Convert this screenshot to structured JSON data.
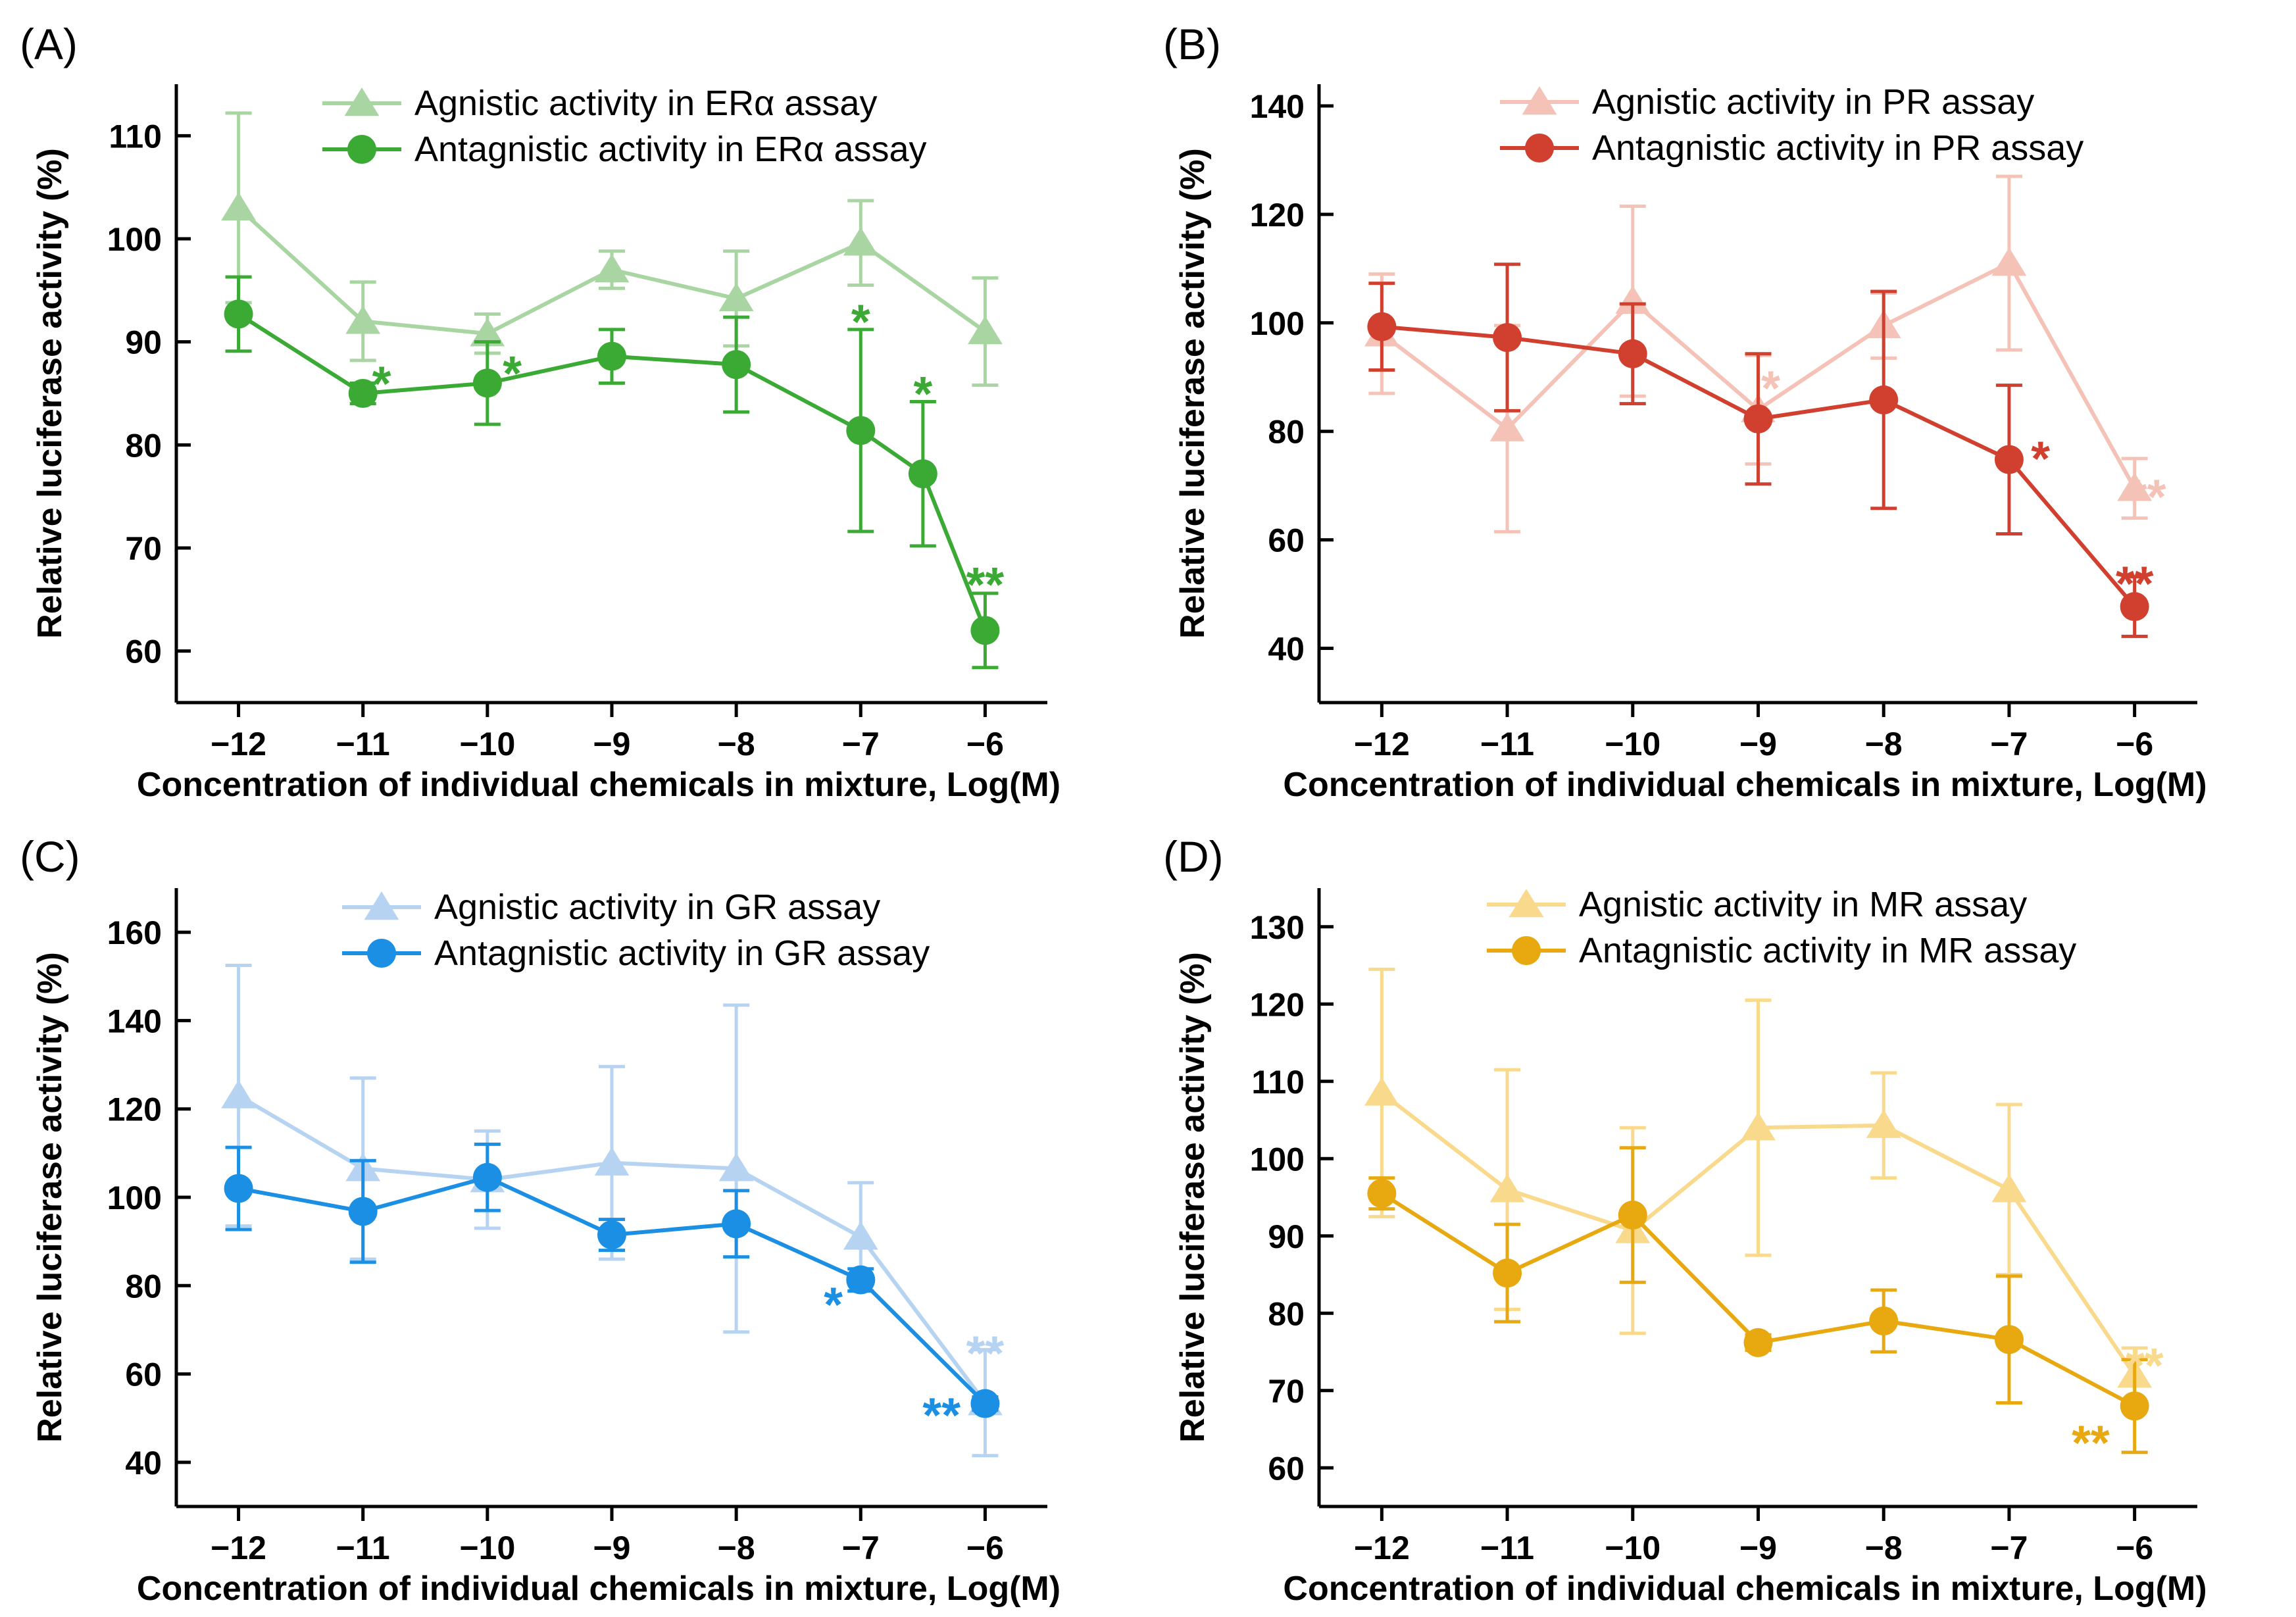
{
  "chart_data": [
    {
      "type": "line",
      "panel_label": "(A)",
      "xlabel": "Concentration of individual chemicals in mixture, Log(M)",
      "ylabel": "Relative luciferase activity (%)",
      "xlim": [
        -12.5,
        -5.5
      ],
      "ylim": [
        55,
        115
      ],
      "xticks": [
        -12,
        -11,
        -10,
        -9,
        -8,
        -7,
        -6
      ],
      "xtick_labels": [
        "−12",
        "−11",
        "−10",
        "−9",
        "−8",
        "−7",
        "−6"
      ],
      "yticks": [
        60,
        70,
        80,
        90,
        100,
        110
      ],
      "ytick_labels": [
        "60",
        "70",
        "80",
        "90",
        "100",
        "110"
      ],
      "legend_position": "top-right",
      "series": [
        {
          "name": "Agnistic activity in ERα assay",
          "marker": "triangle",
          "color": "#a8d5a2",
          "x": [
            -12,
            -11,
            -10,
            -9,
            -8,
            -7,
            -6
          ],
          "y": [
            103,
            92,
            90.8,
            97,
            94.2,
            99.6,
            91
          ],
          "err": [
            9.2,
            3.8,
            1.9,
            1.8,
            4.6,
            4.1,
            5.2
          ]
        },
        {
          "name": "Antagnistic activity in ERα assay",
          "marker": "circle",
          "color": "#3aaa35",
          "x": [
            -12,
            -11,
            -10,
            -9,
            -8,
            -7,
            -6.5,
            -6
          ],
          "y": [
            92.7,
            85,
            86,
            88.6,
            87.8,
            81.4,
            77.2,
            62
          ],
          "err": [
            3.6,
            1.0,
            4.0,
            2.6,
            4.6,
            9.8,
            7.0,
            3.6
          ]
        }
      ],
      "annotations": [
        {
          "text": "*",
          "x": -10.85,
          "y": 86.5,
          "color": "#3aaa35"
        },
        {
          "text": "*",
          "x": -9.8,
          "y": 87.5,
          "color": "#3aaa35"
        },
        {
          "text": "*",
          "x": -7,
          "y": 92.5,
          "color": "#3aaa35"
        },
        {
          "text": "*",
          "x": -6.5,
          "y": 85.5,
          "color": "#3aaa35"
        },
        {
          "text": "**",
          "x": -6,
          "y": 67,
          "color": "#3aaa35"
        }
      ]
    },
    {
      "type": "line",
      "panel_label": "(B)",
      "xlabel": "Concentration of individual chemicals in mixture, Log(M)",
      "ylabel": "Relative luciferase activity (%)",
      "xlim": [
        -12.5,
        -5.5
      ],
      "ylim": [
        30,
        144
      ],
      "xticks": [
        -12,
        -11,
        -10,
        -9,
        -8,
        -7,
        -6
      ],
      "xtick_labels": [
        "−12",
        "−11",
        "−10",
        "−9",
        "−8",
        "−7",
        "−6"
      ],
      "yticks": [
        40,
        60,
        80,
        100,
        120,
        140
      ],
      "ytick_labels": [
        "40",
        "60",
        "80",
        "100",
        "120",
        "140"
      ],
      "legend_position": "top-right",
      "series": [
        {
          "name": "Agnistic activity in PR assay",
          "marker": "triangle",
          "color": "#f4c2b6",
          "x": [
            -12,
            -11,
            -10,
            -9,
            -8,
            -7,
            -6
          ],
          "y": [
            98,
            80.5,
            104,
            84,
            99.5,
            111,
            69.5
          ],
          "err": [
            11,
            19,
            17.5,
            10,
            6,
            16,
            5.5
          ]
        },
        {
          "name": "Antagnistic activity in PR assay",
          "marker": "circle",
          "color": "#d1402f",
          "x": [
            -12,
            -11,
            -10,
            -9,
            -8,
            -7,
            -6
          ],
          "y": [
            99.3,
            97.3,
            94.3,
            82.3,
            85.8,
            74.8,
            47.7
          ],
          "err": [
            8,
            13.5,
            9.2,
            12,
            20,
            13.7,
            5.5
          ]
        }
      ],
      "annotations": [
        {
          "text": "*",
          "x": -8.9,
          "y": 89,
          "color": "#f4c2b6"
        },
        {
          "text": "*",
          "x": -6.75,
          "y": 76,
          "color": "#d1402f"
        },
        {
          "text": "**",
          "x": -5.9,
          "y": 69,
          "color": "#f4c2b6"
        },
        {
          "text": "**",
          "x": -6,
          "y": 53,
          "color": "#d1402f"
        }
      ]
    },
    {
      "type": "line",
      "panel_label": "(C)",
      "xlabel": "Concentration of individual chemicals in mixture, Log(M)",
      "ylabel": "Relative luciferase activity (%)",
      "xlim": [
        -12.5,
        -5.5
      ],
      "ylim": [
        30,
        170
      ],
      "xticks": [
        -12,
        -11,
        -10,
        -9,
        -8,
        -7,
        -6
      ],
      "xtick_labels": [
        "−12",
        "−11",
        "−10",
        "−9",
        "−8",
        "−7",
        "−6"
      ],
      "yticks": [
        40,
        60,
        80,
        100,
        120,
        140,
        160
      ],
      "ytick_labels": [
        "40",
        "60",
        "80",
        "100",
        "120",
        "140",
        "160"
      ],
      "legend_position": "top-right",
      "series": [
        {
          "name": "Agnistic activity in GR assay",
          "marker": "triangle",
          "color": "#b7d3f2",
          "x": [
            -12,
            -11,
            -10,
            -9,
            -8,
            -7,
            -6
          ],
          "y": [
            123,
            106.5,
            104,
            107.8,
            106.5,
            91,
            53.5
          ],
          "err": [
            29.5,
            20.5,
            11,
            21.8,
            37,
            12.3,
            12
          ]
        },
        {
          "name": "Antagnistic activity in GR assay",
          "marker": "circle",
          "color": "#1a8fe3",
          "x": [
            -12,
            -11,
            -10,
            -9,
            -8,
            -7,
            -6
          ],
          "y": [
            102,
            96.8,
            104.5,
            91.5,
            94,
            81.3,
            53.3
          ],
          "err": [
            9.3,
            11.5,
            7.5,
            3.5,
            7.5,
            2.5,
            1.5
          ]
        }
      ],
      "annotations": [
        {
          "text": "*",
          "x": -7.22,
          "y": 77,
          "color": "#1a8fe3"
        },
        {
          "text": "**",
          "x": -6,
          "y": 66,
          "color": "#b7d3f2"
        },
        {
          "text": "**",
          "x": -6.35,
          "y": 52,
          "color": "#1a8fe3"
        }
      ]
    },
    {
      "type": "line",
      "panel_label": "(D)",
      "xlabel": "Concentration of individual chemicals in mixture, Log(M)",
      "ylabel": "Relative luciferase activity (%)",
      "xlim": [
        -12.5,
        -5.5
      ],
      "ylim": [
        55,
        135
      ],
      "xticks": [
        -12,
        -11,
        -10,
        -9,
        -8,
        -7,
        -6
      ],
      "xtick_labels": [
        "−12",
        "−11",
        "−10",
        "−9",
        "−8",
        "−7",
        "−6"
      ],
      "yticks": [
        60,
        70,
        80,
        90,
        100,
        110,
        120,
        130
      ],
      "ytick_labels": [
        "60",
        "70",
        "80",
        "90",
        "100",
        "110",
        "120",
        "130"
      ],
      "legend_position": "top-right",
      "series": [
        {
          "name": "Agnistic activity in MR assay",
          "marker": "triangle",
          "color": "#f9d98c",
          "x": [
            -12,
            -11,
            -10,
            -9,
            -8,
            -7,
            -6
          ],
          "y": [
            108.5,
            96,
            90.7,
            104,
            104.3,
            96,
            72
          ],
          "err": [
            16,
            15.5,
            13.3,
            16.5,
            6.8,
            11,
            3.5
          ]
        },
        {
          "name": "Antagnistic activity in MR assay",
          "marker": "circle",
          "color": "#e8a810",
          "x": [
            -12,
            -11,
            -10,
            -9,
            -8,
            -7,
            -6
          ],
          "y": [
            95.5,
            85.2,
            92.7,
            76.2,
            79,
            76.6,
            68
          ],
          "err": [
            2,
            6.3,
            8.7,
            1,
            4,
            8.2,
            6
          ]
        }
      ],
      "annotations": [
        {
          "text": "**",
          "x": -5.92,
          "y": 74,
          "color": "#f9d98c"
        },
        {
          "text": "**",
          "x": -6.35,
          "y": 64,
          "color": "#e8a810"
        }
      ]
    }
  ]
}
